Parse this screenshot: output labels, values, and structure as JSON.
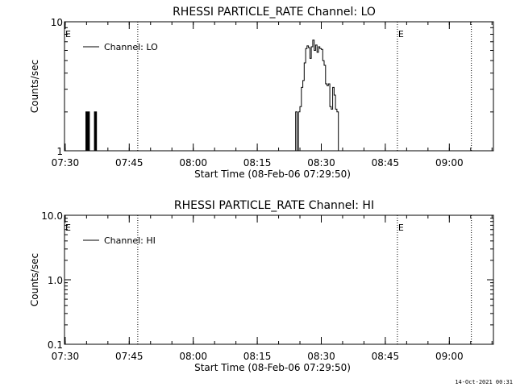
{
  "footer": {
    "timestamp": "14-Oct-2021 00:31"
  },
  "chart_data": [
    {
      "type": "line",
      "title": "RHESSI PARTICLE_RATE Channel: LO",
      "xlabel": "Start Time (08-Feb-06 07:29:50)",
      "ylabel": "Counts/sec",
      "yscale": "log",
      "xlim": [
        "07:29:50",
        "09:10:20"
      ],
      "ylim": [
        1,
        10
      ],
      "xticks": [
        "07:30",
        "07:45",
        "08:00",
        "08:15",
        "08:30",
        "08:45",
        "09:00"
      ],
      "yticks": [
        {
          "value": 1,
          "label": "1"
        },
        {
          "value": 10,
          "label": "10"
        }
      ],
      "legend": {
        "position": "top-left",
        "entries": [
          "Channel: LO"
        ]
      },
      "event_lines": [
        {
          "time": "07:47:00",
          "label": ""
        },
        {
          "time": "08:47:50",
          "label": "E"
        },
        {
          "time": "09:05:10",
          "label": ""
        }
      ],
      "edge_markers": [
        {
          "time": "07:29:50",
          "label": "E"
        }
      ],
      "series": [
        {
          "name": "Channel: LO",
          "points": [
            [
              "07:29:50",
              1
            ],
            [
              "07:34:40",
              1
            ],
            [
              "07:34:50",
              2
            ],
            [
              "07:35:00",
              1
            ],
            [
              "07:35:10",
              2
            ],
            [
              "07:35:20",
              1
            ],
            [
              "07:35:30",
              2
            ],
            [
              "07:35:40",
              1
            ],
            [
              "07:36:40",
              1
            ],
            [
              "07:36:50",
              2
            ],
            [
              "07:37:00",
              1
            ],
            [
              "07:37:10",
              2
            ],
            [
              "07:37:20",
              1
            ],
            [
              "08:23:40",
              1
            ],
            [
              "08:24:00",
              2
            ],
            [
              "08:24:20",
              1
            ],
            [
              "08:24:40",
              2
            ],
            [
              "08:25:00",
              2.2
            ],
            [
              "08:25:20",
              3.1
            ],
            [
              "08:25:40",
              3.5
            ],
            [
              "08:26:00",
              4.8
            ],
            [
              "08:26:20",
              6.2
            ],
            [
              "08:26:40",
              6.5
            ],
            [
              "08:27:00",
              6.3
            ],
            [
              "08:27:20",
              5.2
            ],
            [
              "08:27:40",
              6.4
            ],
            [
              "08:28:00",
              7.2
            ],
            [
              "08:28:20",
              6.0
            ],
            [
              "08:28:40",
              6.6
            ],
            [
              "08:29:00",
              5.8
            ],
            [
              "08:29:20",
              6.4
            ],
            [
              "08:29:40",
              6.2
            ],
            [
              "08:30:00",
              6.1
            ],
            [
              "08:30:20",
              5.0
            ],
            [
              "08:30:40",
              4.6
            ],
            [
              "08:31:00",
              3.3
            ],
            [
              "08:31:20",
              3.2
            ],
            [
              "08:31:40",
              3.3
            ],
            [
              "08:32:00",
              2.2
            ],
            [
              "08:32:20",
              2.1
            ],
            [
              "08:32:40",
              3.1
            ],
            [
              "08:33:00",
              2.7
            ],
            [
              "08:33:20",
              2.1
            ],
            [
              "08:33:40",
              2.0
            ],
            [
              "08:34:00",
              1
            ],
            [
              "08:34:20",
              1
            ],
            [
              "09:10:20",
              1
            ]
          ]
        }
      ]
    },
    {
      "type": "line",
      "title": "RHESSI PARTICLE_RATE Channel: HI",
      "xlabel": "Start Time (08-Feb-06 07:29:50)",
      "ylabel": "Counts/sec",
      "yscale": "log",
      "xlim": [
        "07:29:50",
        "09:10:20"
      ],
      "ylim": [
        0.1,
        10
      ],
      "xticks": [
        "07:30",
        "07:45",
        "08:00",
        "08:15",
        "08:30",
        "08:45",
        "09:00"
      ],
      "yticks": [
        {
          "value": 0.1,
          "label": "0.1"
        },
        {
          "value": 1,
          "label": "1.0"
        },
        {
          "value": 10,
          "label": "10.0"
        }
      ],
      "legend": {
        "position": "top-left",
        "entries": [
          "Channel: HI"
        ]
      },
      "event_lines": [
        {
          "time": "07:47:00",
          "label": ""
        },
        {
          "time": "08:47:50",
          "label": "E"
        },
        {
          "time": "09:05:10",
          "label": ""
        }
      ],
      "edge_markers": [
        {
          "time": "07:29:50",
          "label": "E"
        }
      ],
      "series": [
        {
          "name": "Channel: HI",
          "points": []
        }
      ]
    }
  ]
}
